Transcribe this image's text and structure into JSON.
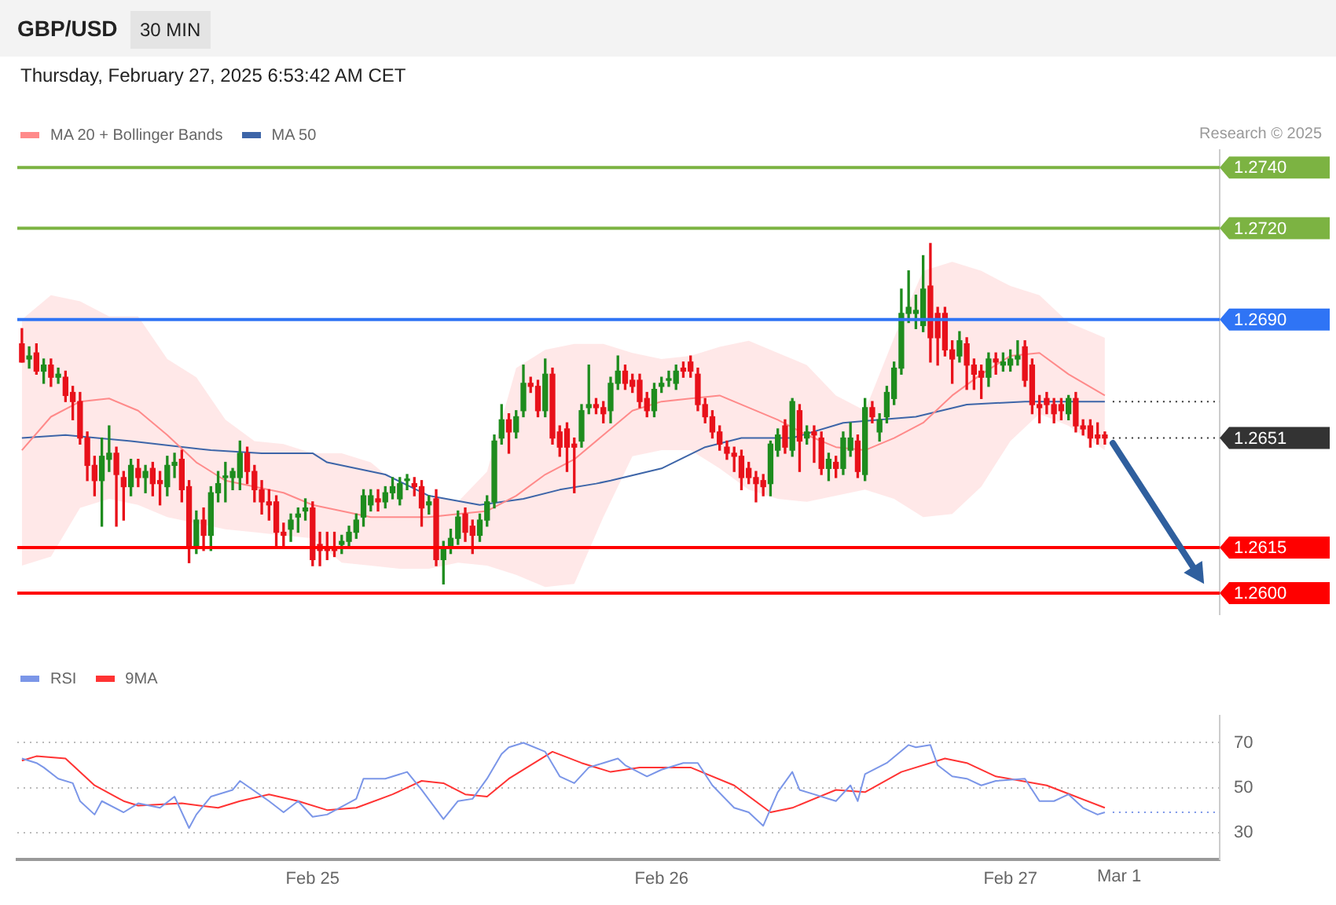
{
  "chart_data": [
    {
      "type": "candlestick",
      "title": "GBP/USD",
      "subtitle": "Thursday, February 27, 2025 6:53:42 AM CET",
      "annotations": [
        "30 MIN",
        "Research © 2025"
      ],
      "legend": "top left",
      "tick_labels": false,
      "xlim": [
        "2025-02-24T03:41",
        "2025-02-27T14:24"
      ],
      "ylim": [
        1.2593,
        1.2746
      ],
      "ref_lines": [
        {
          "axis": "y",
          "value": 1.274,
          "label": "1.2740",
          "color": "#7cb342"
        },
        {
          "axis": "y",
          "value": 1.272,
          "label": "1.2720",
          "color": "#7cb342"
        },
        {
          "axis": "y",
          "value": 1.269,
          "label": "1.2690",
          "color": "#2f74f5"
        },
        {
          "axis": "y",
          "value": 1.2663,
          "color": "#333333",
          "line_style": "dotted"
        },
        {
          "axis": "y",
          "value": 1.2651,
          "label": "1.2651",
          "color": "#333333",
          "line_style": "dotted"
        },
        {
          "axis": "y",
          "value": 1.2615,
          "label": "1.2615",
          "color": "#ff0000"
        },
        {
          "axis": "y",
          "value": 1.26,
          "label": "1.2600",
          "color": "#ff0000"
        }
      ],
      "series": [
        {
          "x": [
            "2025-02-24T04:00",
            "2025-02-24T04:30",
            "2025-02-24T05:00",
            "2025-02-24T05:30",
            "2025-02-24T06:00",
            "2025-02-24T06:30",
            "2025-02-24T07:00",
            "2025-02-24T07:30",
            "2025-02-24T08:00",
            "2025-02-24T08:30",
            "2025-02-24T09:00",
            "2025-02-24T09:30",
            "2025-02-24T10:00",
            "2025-02-24T10:30",
            "2025-02-24T11:00",
            "2025-02-24T11:30",
            "2025-02-24T12:00",
            "2025-02-24T12:30",
            "2025-02-24T13:00",
            "2025-02-24T13:30",
            "2025-02-24T14:00",
            "2025-02-24T14:30",
            "2025-02-24T15:00",
            "2025-02-24T15:30",
            "2025-02-24T16:00",
            "2025-02-24T16:30",
            "2025-02-24T17:00",
            "2025-02-24T17:30",
            "2025-02-24T18:00",
            "2025-02-24T18:30",
            "2025-02-24T19:00",
            "2025-02-24T19:30",
            "2025-02-24T20:00",
            "2025-02-24T20:30",
            "2025-02-24T21:00",
            "2025-02-24T21:30",
            "2025-02-24T22:00",
            "2025-02-24T22:30",
            "2025-02-24T23:00",
            "2025-02-24T23:30",
            "2025-02-25T00:00",
            "2025-02-25T00:30",
            "2025-02-25T01:00",
            "2025-02-25T01:30",
            "2025-02-25T02:00",
            "2025-02-25T02:30",
            "2025-02-25T03:00",
            "2025-02-25T03:30",
            "2025-02-25T04:00",
            "2025-02-25T04:30",
            "2025-02-25T05:00",
            "2025-02-25T05:30",
            "2025-02-25T06:00",
            "2025-02-25T06:30",
            "2025-02-25T07:00",
            "2025-02-25T07:30",
            "2025-02-25T08:00",
            "2025-02-25T08:30",
            "2025-02-25T09:00",
            "2025-02-25T09:30",
            "2025-02-25T10:00",
            "2025-02-25T10:30",
            "2025-02-25T11:00",
            "2025-02-25T11:30",
            "2025-02-25T12:00",
            "2025-02-25T12:30",
            "2025-02-25T13:00",
            "2025-02-25T13:30",
            "2025-02-25T14:00",
            "2025-02-25T14:30",
            "2025-02-25T15:00",
            "2025-02-25T15:30",
            "2025-02-25T16:00",
            "2025-02-25T16:30",
            "2025-02-25T17:00",
            "2025-02-25T17:30",
            "2025-02-25T18:00",
            "2025-02-25T18:30",
            "2025-02-25T19:00",
            "2025-02-25T19:30",
            "2025-02-25T20:00",
            "2025-02-25T20:30",
            "2025-02-25T21:00",
            "2025-02-25T21:30",
            "2025-02-25T22:00",
            "2025-02-25T22:30",
            "2025-02-25T23:00",
            "2025-02-25T23:30",
            "2025-02-26T00:00",
            "2025-02-26T00:30",
            "2025-02-26T01:00",
            "2025-02-26T01:30",
            "2025-02-26T02:00",
            "2025-02-26T02:30",
            "2025-02-26T03:00",
            "2025-02-26T03:30",
            "2025-02-26T04:00",
            "2025-02-26T04:30",
            "2025-02-26T05:00",
            "2025-02-26T05:30",
            "2025-02-26T06:00",
            "2025-02-26T06:30",
            "2025-02-26T07:00",
            "2025-02-26T07:30",
            "2025-02-26T08:00",
            "2025-02-26T08:30",
            "2025-02-26T09:00",
            "2025-02-26T09:30",
            "2025-02-26T10:00",
            "2025-02-26T10:30",
            "2025-02-26T11:00",
            "2025-02-26T11:30",
            "2025-02-26T12:00",
            "2025-02-26T12:30",
            "2025-02-26T13:00",
            "2025-02-26T13:30",
            "2025-02-26T14:00",
            "2025-02-26T14:30",
            "2025-02-26T15:00",
            "2025-02-26T15:30",
            "2025-02-26T16:00",
            "2025-02-26T16:30",
            "2025-02-26T17:00",
            "2025-02-26T17:30",
            "2025-02-26T18:00",
            "2025-02-26T18:30",
            "2025-02-26T19:00",
            "2025-02-26T19:30",
            "2025-02-26T20:00",
            "2025-02-26T20:30",
            "2025-02-26T21:00",
            "2025-02-26T21:30",
            "2025-02-26T22:00",
            "2025-02-26T22:30",
            "2025-02-26T23:00",
            "2025-02-26T23:30",
            "2025-02-27T00:00",
            "2025-02-27T00:30",
            "2025-02-27T01:00",
            "2025-02-27T01:30",
            "2025-02-27T02:00",
            "2025-02-27T02:30",
            "2025-02-27T03:00",
            "2025-02-27T03:30",
            "2025-02-27T04:00",
            "2025-02-27T04:30",
            "2025-02-27T05:00",
            "2025-02-27T05:30",
            "2025-02-27T06:00",
            "2025-02-27T06:30"
          ],
          "ohlc": [
            [
              1.2682,
              1.2687,
              1.2676,
              1.2676
            ],
            [
              1.2677,
              1.2681,
              1.2674,
              1.2678
            ],
            [
              1.2679,
              1.2682,
              1.2672,
              1.2673
            ],
            [
              1.2673,
              1.2677,
              1.2669,
              1.2675
            ],
            [
              1.2675,
              1.2677,
              1.2668,
              1.2671
            ],
            [
              1.2671,
              1.2674,
              1.2669,
              1.2672
            ],
            [
              1.2671,
              1.2673,
              1.2663,
              1.2665
            ],
            [
              1.2666,
              1.2668,
              1.2657,
              1.2663
            ],
            [
              1.2663,
              1.2666,
              1.2649,
              1.2651
            ],
            [
              1.2651,
              1.2653,
              1.2637,
              1.2642
            ],
            [
              1.2642,
              1.2645,
              1.2632,
              1.2637
            ],
            [
              1.2637,
              1.2651,
              1.2622,
              1.2645
            ],
            [
              1.2644,
              1.2655,
              1.264,
              1.2646
            ],
            [
              1.2646,
              1.2648,
              1.2622,
              1.2639
            ],
            [
              1.2638,
              1.264,
              1.2624,
              1.2635
            ],
            [
              1.2635,
              1.2644,
              1.2632,
              1.2642
            ],
            [
              1.2641,
              1.2644,
              1.2635,
              1.2638
            ],
            [
              1.2638,
              1.2642,
              1.2633,
              1.264
            ],
            [
              1.2641,
              1.2643,
              1.2632,
              1.2636
            ],
            [
              1.2637,
              1.264,
              1.2629,
              1.2636
            ],
            [
              1.2635,
              1.2645,
              1.2632,
              1.2642
            ],
            [
              1.2642,
              1.2646,
              1.2638,
              1.2643
            ],
            [
              1.2644,
              1.2647,
              1.263,
              1.2634
            ],
            [
              1.2635,
              1.2637,
              1.261,
              1.2615
            ],
            [
              1.2615,
              1.2627,
              1.2613,
              1.2624
            ],
            [
              1.2624,
              1.2628,
              1.2614,
              1.2619
            ],
            [
              1.2619,
              1.2635,
              1.2614,
              1.2633
            ],
            [
              1.2633,
              1.264,
              1.263,
              1.2636
            ],
            [
              1.2638,
              1.2643,
              1.263,
              1.2638
            ],
            [
              1.2638,
              1.2641,
              1.2634,
              1.264
            ],
            [
              1.2638,
              1.265,
              1.2634,
              1.2646
            ],
            [
              1.2646,
              1.2648,
              1.2636,
              1.264
            ],
            [
              1.264,
              1.2642,
              1.263,
              1.2634
            ],
            [
              1.2634,
              1.2637,
              1.2626,
              1.263
            ],
            [
              1.263,
              1.2634,
              1.2624,
              1.2629
            ],
            [
              1.263,
              1.2632,
              1.2615,
              1.262
            ],
            [
              1.262,
              1.2623,
              1.2615,
              1.2619
            ],
            [
              1.2621,
              1.2626,
              1.2617,
              1.2624
            ],
            [
              1.2625,
              1.2628,
              1.262,
              1.2626
            ],
            [
              1.2627,
              1.2631,
              1.2624,
              1.2628
            ],
            [
              1.2628,
              1.263,
              1.2609,
              1.2611
            ],
            [
              1.2616,
              1.262,
              1.2609,
              1.2614
            ],
            [
              1.2615,
              1.262,
              1.2611,
              1.2614
            ],
            [
              1.2615,
              1.262,
              1.2612,
              1.2614
            ],
            [
              1.2616,
              1.2619,
              1.2613,
              1.2617
            ],
            [
              1.2617,
              1.2622,
              1.2615,
              1.262
            ],
            [
              1.262,
              1.2626,
              1.2618,
              1.2624
            ],
            [
              1.2625,
              1.2634,
              1.2622,
              1.2632
            ],
            [
              1.2629,
              1.2634,
              1.2627,
              1.2632
            ],
            [
              1.2631,
              1.2634,
              1.2627,
              1.263
            ],
            [
              1.263,
              1.2635,
              1.2628,
              1.2633
            ],
            [
              1.2633,
              1.2638,
              1.2631,
              1.2635
            ],
            [
              1.2631,
              1.2638,
              1.2629,
              1.2636
            ],
            [
              1.2637,
              1.2639,
              1.2634,
              1.2637
            ],
            [
              1.2636,
              1.2638,
              1.2632,
              1.2635
            ],
            [
              1.2635,
              1.2637,
              1.2622,
              1.2628
            ],
            [
              1.2629,
              1.2632,
              1.2626,
              1.263
            ],
            [
              1.2631,
              1.2634,
              1.2609,
              1.2611
            ],
            [
              1.2611,
              1.2617,
              1.2603,
              1.2615
            ],
            [
              1.2615,
              1.2621,
              1.2613,
              1.2618
            ],
            [
              1.2618,
              1.2627,
              1.2616,
              1.2625
            ],
            [
              1.2626,
              1.2628,
              1.2617,
              1.262
            ],
            [
              1.2622,
              1.2624,
              1.2613,
              1.2619
            ],
            [
              1.2619,
              1.2626,
              1.2617,
              1.2624
            ],
            [
              1.2624,
              1.2632,
              1.2622,
              1.263
            ],
            [
              1.263,
              1.2652,
              1.2628,
              1.265
            ],
            [
              1.2651,
              1.2662,
              1.2649,
              1.2657
            ],
            [
              1.2657,
              1.2659,
              1.2646,
              1.2653
            ],
            [
              1.2653,
              1.266,
              1.2651,
              1.2658
            ],
            [
              1.266,
              1.2675,
              1.2658,
              1.2669
            ],
            [
              1.2669,
              1.2671,
              1.2666,
              1.2668
            ],
            [
              1.2668,
              1.267,
              1.2658,
              1.266
            ],
            [
              1.266,
              1.2677,
              1.2658,
              1.2672
            ],
            [
              1.2672,
              1.2674,
              1.2649,
              1.2651
            ],
            [
              1.2653,
              1.2655,
              1.2645,
              1.2648
            ],
            [
              1.2654,
              1.2656,
              1.264,
              1.2648
            ],
            [
              1.2649,
              1.2651,
              1.2633,
              1.2648
            ],
            [
              1.265,
              1.2662,
              1.2648,
              1.266
            ],
            [
              1.2661,
              1.2675,
              1.2659,
              1.2662
            ],
            [
              1.2662,
              1.2664,
              1.2659,
              1.2661
            ],
            [
              1.2661,
              1.2663,
              1.2656,
              1.2659
            ],
            [
              1.266,
              1.2671,
              1.2656,
              1.2669
            ],
            [
              1.2669,
              1.2678,
              1.2667,
              1.2673
            ],
            [
              1.2673,
              1.2675,
              1.2667,
              1.2669
            ],
            [
              1.267,
              1.2672,
              1.2666,
              1.2668
            ],
            [
              1.267,
              1.2672,
              1.2661,
              1.2663
            ],
            [
              1.2664,
              1.2666,
              1.2658,
              1.266
            ],
            [
              1.266,
              1.2669,
              1.2658,
              1.2667
            ],
            [
              1.2668,
              1.2671,
              1.2666,
              1.2669
            ],
            [
              1.267,
              1.2673,
              1.2668,
              1.267
            ],
            [
              1.2669,
              1.2675,
              1.2667,
              1.2673
            ],
            [
              1.2674,
              1.2676,
              1.2671,
              1.2673
            ],
            [
              1.2676,
              1.2678,
              1.2671,
              1.2673
            ],
            [
              1.2672,
              1.2674,
              1.266,
              1.2662
            ],
            [
              1.2662,
              1.2664,
              1.2656,
              1.2658
            ],
            [
              1.2658,
              1.266,
              1.2651,
              1.2653
            ],
            [
              1.2653,
              1.2655,
              1.2647,
              1.2649
            ],
            [
              1.2648,
              1.265,
              1.2644,
              1.2646
            ],
            [
              1.2646,
              1.2648,
              1.264,
              1.2645
            ],
            [
              1.2645,
              1.2647,
              1.2634,
              1.2638
            ],
            [
              1.2641,
              1.2643,
              1.2636,
              1.2638
            ],
            [
              1.2638,
              1.264,
              1.263,
              1.2636
            ],
            [
              1.2637,
              1.2639,
              1.2632,
              1.2635
            ],
            [
              1.2636,
              1.265,
              1.2632,
              1.2649
            ],
            [
              1.2647,
              1.2654,
              1.2645,
              1.2652
            ],
            [
              1.2655,
              1.2657,
              1.2646,
              1.2648
            ],
            [
              1.2647,
              1.2664,
              1.2645,
              1.2663
            ],
            [
              1.266,
              1.2662,
              1.264,
              1.265
            ],
            [
              1.2651,
              1.2655,
              1.2649,
              1.2653
            ],
            [
              1.2653,
              1.2655,
              1.2643,
              1.2652
            ],
            [
              1.2651,
              1.2653,
              1.2639,
              1.2641
            ],
            [
              1.2641,
              1.2646,
              1.2637,
              1.2644
            ],
            [
              1.2643,
              1.2645,
              1.2638,
              1.2641
            ],
            [
              1.2641,
              1.2653,
              1.2639,
              1.2651
            ],
            [
              1.2647,
              1.2656,
              1.2645,
              1.2651
            ],
            [
              1.265,
              1.2652,
              1.2638,
              1.264
            ],
            [
              1.2639,
              1.2664,
              1.2637,
              1.2661
            ],
            [
              1.2661,
              1.2663,
              1.2656,
              1.2658
            ],
            [
              1.2653,
              1.2659,
              1.265,
              1.2657
            ],
            [
              1.2658,
              1.2668,
              1.2656,
              1.2666
            ],
            [
              1.2664,
              1.2676,
              1.2662,
              1.2674
            ],
            [
              1.2674,
              1.27,
              1.2672,
              1.2692
            ],
            [
              1.2692,
              1.2706,
              1.2689,
              1.2694
            ],
            [
              1.2692,
              1.2698,
              1.2687,
              1.2693
            ],
            [
              1.2688,
              1.2711,
              1.2686,
              1.27
            ],
            [
              1.2701,
              1.2715,
              1.2676,
              1.2684
            ],
            [
              1.2692,
              1.2694,
              1.2675,
              1.2684
            ],
            [
              1.2692,
              1.2694,
              1.2678,
              1.268
            ],
            [
              1.268,
              1.2683,
              1.2669,
              1.2677
            ],
            [
              1.2678,
              1.2686,
              1.2676,
              1.2683
            ],
            [
              1.2682,
              1.2684,
              1.2667,
              1.2675
            ],
            [
              1.2675,
              1.2677,
              1.2667,
              1.2672
            ],
            [
              1.2673,
              1.2675,
              1.2664,
              1.2671
            ],
            [
              1.2671,
              1.2679,
              1.2668,
              1.2677
            ],
            [
              1.2677,
              1.2679,
              1.2672,
              1.2676
            ],
            [
              1.2675,
              1.2679,
              1.2673,
              1.2676
            ],
            [
              1.2675,
              1.268,
              1.2673,
              1.2677
            ],
            [
              1.2677,
              1.2683,
              1.2675,
              1.2678
            ],
            [
              1.2681,
              1.2683,
              1.2668,
              1.267
            ],
            [
              1.2675,
              1.2677,
              1.2659,
              1.2662
            ],
            [
              1.2662,
              1.2665,
              1.2656,
              1.2661
            ],
            [
              1.2664,
              1.2666,
              1.2659,
              1.2662
            ],
            [
              1.2662,
              1.2664,
              1.2656,
              1.2659
            ],
            [
              1.2662,
              1.2664,
              1.2657,
              1.266
            ],
            [
              1.2659,
              1.2665,
              1.2657,
              1.2664
            ],
            [
              1.2664,
              1.2666,
              1.2653,
              1.2655
            ],
            [
              1.2655,
              1.2657,
              1.2652,
              1.2654
            ],
            [
              1.2655,
              1.2657,
              1.2648,
              1.2651
            ],
            [
              1.2652,
              1.2656,
              1.2649,
              1.2651
            ],
            [
              1.2652,
              1.2653,
              1.2649,
              1.2651
            ]
          ],
          "colors": [
            "#e8111a",
            "#1e8c1e",
            "#e8111a",
            "#1e8c1e",
            "#e8111a",
            "#1e8c1e",
            "#e8111a",
            "#e8111a",
            "#e8111a",
            "#e8111a",
            "#e8111a",
            "#1e8c1e",
            "#1e8c1e",
            "#e8111a",
            "#e8111a",
            "#1e8c1e",
            "#e8111a",
            "#1e8c1e",
            "#e8111a",
            "#e8111a",
            "#1e8c1e",
            "#1e8c1e",
            "#e8111a",
            "#e8111a",
            "#1e8c1e",
            "#e8111a",
            "#1e8c1e",
            "#1e8c1e",
            "#1e8c1e",
            "#1e8c1e",
            "#1e8c1e",
            "#e8111a",
            "#e8111a",
            "#e8111a",
            "#e8111a",
            "#e8111a",
            "#e8111a",
            "#1e8c1e",
            "#1e8c1e",
            "#1e8c1e",
            "#e8111a",
            "#e8111a",
            "#e8111a",
            "#e8111a",
            "#1e8c1e",
            "#1e8c1e",
            "#1e8c1e",
            "#1e8c1e",
            "#1e8c1e",
            "#e8111a",
            "#1e8c1e",
            "#1e8c1e",
            "#1e8c1e",
            "#1e8c1e",
            "#e8111a",
            "#e8111a",
            "#1e8c1e",
            "#e8111a",
            "#1e8c1e",
            "#1e8c1e",
            "#1e8c1e",
            "#e8111a",
            "#e8111a",
            "#1e8c1e",
            "#1e8c1e",
            "#1e8c1e",
            "#1e8c1e",
            "#e8111a",
            "#1e8c1e",
            "#1e8c1e",
            "#e8111a",
            "#e8111a",
            "#1e8c1e",
            "#e8111a",
            "#e8111a",
            "#e8111a",
            "#e8111a",
            "#1e8c1e",
            "#1e8c1e",
            "#e8111a",
            "#e8111a",
            "#1e8c1e",
            "#1e8c1e",
            "#e8111a",
            "#e8111a",
            "#e8111a",
            "#e8111a",
            "#1e8c1e",
            "#1e8c1e",
            "#1e8c1e",
            "#1e8c1e",
            "#e8111a",
            "#e8111a",
            "#e8111a",
            "#e8111a",
            "#e8111a",
            "#e8111a",
            "#e8111a",
            "#e8111a",
            "#e8111a",
            "#e8111a",
            "#e8111a",
            "#e8111a",
            "#1e8c1e",
            "#1e8c1e",
            "#e8111a",
            "#1e8c1e",
            "#e8111a",
            "#1e8c1e",
            "#e8111a",
            "#e8111a",
            "#1e8c1e",
            "#e8111a",
            "#1e8c1e",
            "#1e8c1e",
            "#e8111a",
            "#1e8c1e",
            "#e8111a",
            "#1e8c1e",
            "#1e8c1e",
            "#1e8c1e",
            "#1e8c1e",
            "#1e8c1e",
            "#1e8c1e",
            "#1e8c1e",
            "#e8111a",
            "#e8111a",
            "#e8111a",
            "#e8111a",
            "#1e8c1e",
            "#e8111a",
            "#e8111a",
            "#e8111a",
            "#1e8c1e",
            "#e8111a",
            "#1e8c1e",
            "#1e8c1e",
            "#1e8c1e",
            "#e8111a",
            "#e8111a",
            "#e8111a",
            "#e8111a",
            "#e8111a",
            "#e8111a",
            "#1e8c1e",
            "#e8111a",
            "#e8111a",
            "#e8111a",
            "#e8111a",
            "#e8111a"
          ]
        },
        {
          "name": "MA 20 + Bollinger Bands",
          "type": "line",
          "color": "#ff8a8a",
          "x": [
            "2025-02-24T04:00",
            "2025-02-24T06:00",
            "2025-02-24T08:00",
            "2025-02-24T10:00",
            "2025-02-24T12:00",
            "2025-02-24T14:00",
            "2025-02-24T16:00",
            "2025-02-24T18:00",
            "2025-02-24T20:00",
            "2025-02-24T22:00",
            "2025-02-25T00:00",
            "2025-02-25T02:00",
            "2025-02-25T04:00",
            "2025-02-25T06:00",
            "2025-02-25T08:00",
            "2025-02-25T10:00",
            "2025-02-25T12:00",
            "2025-02-25T14:00",
            "2025-02-25T16:00",
            "2025-02-25T18:00",
            "2025-02-25T20:00",
            "2025-02-25T22:00",
            "2025-02-26T00:00",
            "2025-02-26T02:00",
            "2025-02-26T04:00",
            "2025-02-26T06:00",
            "2025-02-26T08:00",
            "2025-02-26T10:00",
            "2025-02-26T12:00",
            "2025-02-26T14:00",
            "2025-02-26T16:00",
            "2025-02-26T18:00",
            "2025-02-26T20:00",
            "2025-02-26T22:00",
            "2025-02-27T00:00",
            "2025-02-27T02:00",
            "2025-02-27T04:00",
            "2025-02-27T06:30"
          ],
          "values": [
            1.2647,
            1.2658,
            1.2663,
            1.2664,
            1.266,
            1.2652,
            1.2643,
            1.2637,
            1.2635,
            1.2633,
            1.2629,
            1.2627,
            1.2625,
            1.2625,
            1.2625,
            1.2626,
            1.2627,
            1.2632,
            1.2639,
            1.2644,
            1.2652,
            1.266,
            1.2663,
            1.2664,
            1.2665,
            1.2661,
            1.2657,
            1.2652,
            1.2648,
            1.2647,
            1.2651,
            1.2656,
            1.2665,
            1.2672,
            1.2678,
            1.2679,
            1.2672,
            1.2665
          ],
          "upper": [
            1.269,
            1.2698,
            1.2696,
            1.2691,
            1.2691,
            1.2677,
            1.2671,
            1.2657,
            1.265,
            1.2649,
            1.2646,
            1.2646,
            1.2643,
            1.2635,
            1.2632,
            1.263,
            1.264,
            1.2674,
            1.268,
            1.2682,
            1.2682,
            1.2679,
            1.2677,
            1.2678,
            1.2681,
            1.2683,
            1.2679,
            1.2675,
            1.2665,
            1.266,
            1.2684,
            1.2706,
            1.2709,
            1.2706,
            1.2701,
            1.2698,
            1.2689,
            1.2684
          ],
          "lower": [
            1.2609,
            1.2612,
            1.2628,
            1.2631,
            1.2629,
            1.2625,
            1.2623,
            1.2621,
            1.262,
            1.2619,
            1.2618,
            1.261,
            1.2609,
            1.2608,
            1.2608,
            1.261,
            1.2609,
            1.2606,
            1.2602,
            1.2603,
            1.2625,
            1.2645,
            1.2647,
            1.2647,
            1.2641,
            1.2634,
            1.2631,
            1.263,
            1.2632,
            1.2634,
            1.2631,
            1.2625,
            1.2626,
            1.2635,
            1.265,
            1.2659,
            1.2655,
            1.2647
          ]
        },
        {
          "name": "MA 50",
          "type": "line",
          "color": "#3d65a8",
          "x": [
            "2025-02-24T04:00",
            "2025-02-24T07:00",
            "2025-02-24T11:30",
            "2025-02-24T17:00",
            "2025-02-24T20:30",
            "2025-02-25T00:00",
            "2025-02-25T01:00",
            "2025-02-25T05:00",
            "2025-02-25T08:00",
            "2025-02-25T11:30",
            "2025-02-25T14:30",
            "2025-02-25T17:00",
            "2025-02-25T19:30",
            "2025-02-25T20:30",
            "2025-02-26T00:00",
            "2025-02-26T03:00",
            "2025-02-26T05:30",
            "2025-02-26T09:00",
            "2025-02-26T12:30",
            "2025-02-26T15:00",
            "2025-02-26T17:30",
            "2025-02-26T21:00",
            "2025-02-27T01:00",
            "2025-02-27T06:30"
          ],
          "values": [
            1.2651,
            1.2652,
            1.265,
            1.2647,
            1.2646,
            1.2646,
            1.2643,
            1.2639,
            1.2632,
            1.2629,
            1.2631,
            1.2634,
            1.2636,
            1.2637,
            1.2641,
            1.2648,
            1.2651,
            1.2651,
            1.2656,
            1.2657,
            1.2658,
            1.2662,
            1.2663,
            1.2663
          ]
        }
      ]
    },
    {
      "type": "line",
      "legend": "top left",
      "xlim": [
        "2025-02-24T03:41",
        "2025-02-27T14:24"
      ],
      "xticks": [
        {
          "value": "2025-02-25",
          "label": "Feb 25"
        },
        {
          "value": "2025-02-26",
          "label": "Feb 26"
        },
        {
          "value": "2025-02-27",
          "label": "Feb 27"
        }
      ],
      "annotations": [
        "Mar 1"
      ],
      "ylim": [
        18,
        82
      ],
      "yticks": [
        30,
        50,
        70
      ],
      "grid": "y",
      "ref_lines": [
        {
          "axis": "y",
          "value": 39,
          "color": "#7b96e8",
          "line_style": "dotted"
        }
      ],
      "series": [
        {
          "name": "RSI",
          "color": "#7b96e8",
          "x": [
            "2025-02-24T04:00",
            "2025-02-24T05:00",
            "2025-02-24T05:30",
            "2025-02-24T06:30",
            "2025-02-24T07:30",
            "2025-02-24T08:00",
            "2025-02-24T09:00",
            "2025-02-24T09:30",
            "2025-02-24T11:00",
            "2025-02-24T12:00",
            "2025-02-24T13:30",
            "2025-02-24T14:30",
            "2025-02-24T15:30",
            "2025-02-24T16:00",
            "2025-02-24T17:00",
            "2025-02-24T18:30",
            "2025-02-24T19:00",
            "2025-02-24T21:00",
            "2025-02-24T22:00",
            "2025-02-24T23:00",
            "2025-02-25T00:00",
            "2025-02-25T01:00",
            "2025-02-25T03:00",
            "2025-02-25T03:30",
            "2025-02-25T05:00",
            "2025-02-25T06:30",
            "2025-02-25T07:30",
            "2025-02-25T09:00",
            "2025-02-25T10:00",
            "2025-02-25T11:00",
            "2025-02-25T12:00",
            "2025-02-25T13:00",
            "2025-02-25T13:30",
            "2025-02-25T14:30",
            "2025-02-25T16:00",
            "2025-02-25T17:00",
            "2025-02-25T18:00",
            "2025-02-25T19:00",
            "2025-02-25T20:00",
            "2025-02-25T21:00",
            "2025-02-25T21:30",
            "2025-02-25T23:00",
            "2025-02-26T00:00",
            "2025-02-26T01:30",
            "2025-02-26T02:30",
            "2025-02-26T03:30",
            "2025-02-26T05:00",
            "2025-02-26T06:00",
            "2025-02-26T07:00",
            "2025-02-26T08:00",
            "2025-02-26T09:00",
            "2025-02-26T09:30",
            "2025-02-26T10:30",
            "2025-02-26T12:00",
            "2025-02-26T13:00",
            "2025-02-26T13:30",
            "2025-02-26T14:00",
            "2025-02-26T15:30",
            "2025-02-26T17:00",
            "2025-02-26T17:30",
            "2025-02-26T18:30",
            "2025-02-26T19:00",
            "2025-02-26T20:00",
            "2025-02-26T21:00",
            "2025-02-26T22:00",
            "2025-02-26T23:00",
            "2025-02-27T01:00",
            "2025-02-27T02:00",
            "2025-02-27T03:00",
            "2025-02-27T04:00",
            "2025-02-27T05:00",
            "2025-02-27T06:00",
            "2025-02-27T06:30"
          ],
          "values": [
            63,
            61,
            59,
            54,
            52,
            44,
            38,
            44,
            39,
            43,
            41,
            46,
            32,
            38,
            46,
            49,
            53,
            44,
            39,
            44,
            37,
            38,
            45,
            54,
            54,
            57,
            49,
            36,
            44,
            45,
            54,
            65,
            68,
            70,
            66,
            55,
            52,
            59,
            61,
            63,
            60,
            55,
            58,
            61,
            61,
            51,
            41,
            39,
            33,
            48,
            57,
            49,
            47,
            44,
            51,
            44,
            56,
            61,
            69,
            68,
            69,
            60,
            55,
            54,
            51,
            53,
            54,
            44,
            44,
            47,
            41,
            38,
            39
          ]
        },
        {
          "name": "9MA",
          "color": "#ff3333",
          "x": [
            "2025-02-24T04:00",
            "2025-02-24T05:00",
            "2025-02-24T07:00",
            "2025-02-24T09:00",
            "2025-02-24T11:00",
            "2025-02-24T12:00",
            "2025-02-24T15:00",
            "2025-02-24T17:30",
            "2025-02-24T19:00",
            "2025-02-24T21:00",
            "2025-02-24T23:00",
            "2025-02-25T01:00",
            "2025-02-25T03:00",
            "2025-02-25T05:30",
            "2025-02-25T07:30",
            "2025-02-25T09:00",
            "2025-02-25T10:30",
            "2025-02-25T12:00",
            "2025-02-25T13:30",
            "2025-02-25T16:30",
            "2025-02-25T18:30",
            "2025-02-25T20:30",
            "2025-02-25T22:30",
            "2025-02-26T02:00",
            "2025-02-26T05:00",
            "2025-02-26T07:30",
            "2025-02-26T09:00",
            "2025-02-26T12:00",
            "2025-02-26T14:00",
            "2025-02-26T16:30",
            "2025-02-26T19:30",
            "2025-02-26T21:00",
            "2025-02-26T23:00",
            "2025-02-27T02:30",
            "2025-02-27T04:30",
            "2025-02-27T06:30"
          ],
          "values": [
            62,
            64,
            63,
            51,
            44,
            42,
            43,
            41,
            44,
            47,
            44,
            40,
            41,
            47,
            53,
            52,
            47,
            46,
            54,
            66,
            61,
            57,
            59,
            59,
            51,
            39,
            41,
            49,
            48,
            57,
            63,
            61,
            55,
            51,
            46,
            41
          ]
        }
      ]
    }
  ]
}
